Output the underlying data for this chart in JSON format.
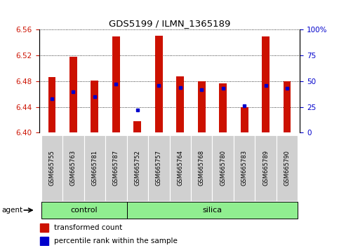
{
  "title": "GDS5199 / ILMN_1365189",
  "samples": [
    "GSM665755",
    "GSM665763",
    "GSM665781",
    "GSM665787",
    "GSM665752",
    "GSM665757",
    "GSM665764",
    "GSM665768",
    "GSM665780",
    "GSM665783",
    "GSM665789",
    "GSM665790"
  ],
  "groups": [
    "control",
    "control",
    "control",
    "control",
    "silica",
    "silica",
    "silica",
    "silica",
    "silica",
    "silica",
    "silica",
    "silica"
  ],
  "red_values": [
    6.487,
    6.518,
    6.481,
    6.55,
    6.418,
    6.551,
    6.488,
    6.48,
    6.477,
    6.44,
    6.55,
    6.48
  ],
  "blue_values_pct": [
    33,
    40,
    35,
    47,
    22,
    46,
    44,
    42,
    43,
    26,
    46,
    43
  ],
  "ymin": 6.4,
  "ymax": 6.56,
  "yticks_left": [
    6.4,
    6.44,
    6.48,
    6.52,
    6.56
  ],
  "yticks_right": [
    0,
    25,
    50,
    75,
    100
  ],
  "bar_color": "#cc1100",
  "dot_color": "#0000cc",
  "group_color": "#90ee90",
  "agent_label": "agent",
  "legend_items": [
    "transformed count",
    "percentile rank within the sample"
  ]
}
